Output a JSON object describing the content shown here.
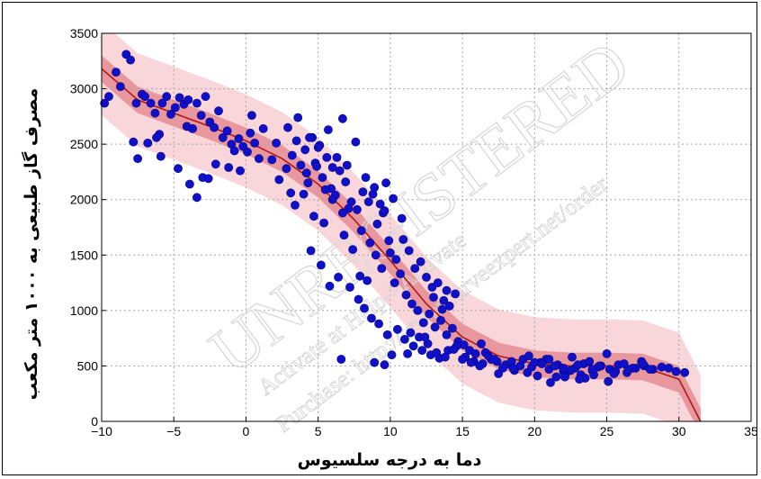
{
  "chart_data": {
    "type": "scatter",
    "xlabel": "دما به درجه سلسیوس",
    "ylabel": "مصرف گاز طبیعی به ۱۰۰۰ متر مکعب",
    "xlim": [
      -10,
      35
    ],
    "ylim": [
      0,
      3500
    ],
    "x_ticks": [
      "−10",
      "−5",
      "0",
      "5",
      "10",
      "15",
      "20",
      "25",
      "30",
      "35"
    ],
    "y_ticks": [
      "0",
      "500",
      "1000",
      "1500",
      "2000",
      "2500",
      "3000",
      "3500"
    ],
    "grid": true,
    "colors": {
      "points": "#1010c8",
      "fit_line": "#b01818",
      "confidence_band": "#e3828a",
      "prediction_band": "#f6c8cc"
    },
    "series": [
      {
        "kind": "points",
        "x": [
          -9.8,
          -9.5,
          -9.0,
          -8.7,
          -8.3,
          -8.0,
          -7.6,
          -7.2,
          -7.0,
          -6.6,
          -6.3,
          -6.0,
          -5.8,
          -5.5,
          -5.2,
          -4.9,
          -4.6,
          -4.3,
          -4.0,
          -3.7,
          -3.4,
          -3.1,
          -2.8,
          -2.5,
          -2.2,
          -1.9,
          -1.6,
          -1.3,
          -1.0,
          -0.8,
          -0.5,
          -0.2,
          0.1,
          0.3,
          0.6,
          0.9,
          -7.5,
          -6.8,
          -5.9,
          -4.7,
          -3.9,
          -3.0,
          -2.1,
          -1.2,
          -0.4,
          -7.8,
          -6.2,
          -4.1,
          -3.4,
          -2.6,
          0.4,
          1.2,
          1.8,
          2.3,
          2.8,
          3.2,
          3.5,
          3.8,
          4.1,
          4.3,
          4.6,
          4.8,
          5.1,
          5.3,
          5.6,
          5.9,
          6.2,
          6.5,
          6.9,
          7.3,
          7.7,
          8.1,
          8.5,
          8.9,
          9.3,
          9.7,
          2.1,
          2.9,
          3.6,
          4.4,
          5.0,
          5.7,
          6.3,
          7.0,
          7.6,
          8.3,
          8.8,
          9.5,
          10.2,
          10.8,
          3.4,
          4.0,
          4.7,
          5.4,
          6.0,
          6.7,
          4.2,
          4.9,
          5.5,
          3.1,
          6.8,
          7.4,
          8.0,
          8.6,
          9.1,
          9.6,
          10.0,
          10.4,
          10.9,
          11.3,
          11.7,
          12.1,
          12.5,
          12.9,
          13.3,
          13.7,
          14.1,
          14.5,
          7.9,
          8.4,
          9.0,
          9.4,
          9.9,
          10.3,
          10.7,
          11.1,
          11.5,
          11.9,
          12.3,
          12.7,
          13.1,
          13.5,
          13.9,
          14.3,
          14.7,
          15.1,
          15.5,
          15.9,
          16.3,
          7.2,
          7.8,
          8.2,
          8.7,
          9.2,
          9.8,
          10.5,
          11.0,
          11.6,
          12.2,
          12.8,
          13.4,
          14.0,
          14.6,
          15.2,
          15.8,
          16.4,
          17.0,
          4.5,
          5.2,
          5.8,
          6.4,
          11.4,
          12.0,
          12.6,
          13.2,
          13.8,
          14.4,
          15.0,
          15.6,
          16.2,
          16.8,
          17.4,
          18.0,
          18.6,
          19.2,
          19.8,
          20.4,
          21.0,
          21.6,
          22.2,
          22.8,
          23.4,
          24.0,
          24.6,
          25.2,
          25.8,
          26.4,
          27.0,
          27.6,
          28.2,
          28.8,
          29.3,
          29.8,
          30.4,
          16.6,
          17.2,
          17.8,
          18.4,
          19.0,
          19.6,
          20.2,
          20.8,
          21.4,
          22.0,
          22.6,
          23.2,
          23.8,
          24.4,
          25.0,
          25.6,
          26.2,
          26.8,
          27.4,
          28.0,
          17.5,
          18.5,
          19.5,
          20.5,
          21.5,
          22.5,
          23.5,
          24.5,
          25.5,
          26.5,
          27.5,
          21.1,
          22.1,
          23.1,
          24.1,
          25.1,
          20.0,
          21.0,
          22.0,
          23.0,
          24.0,
          13.0,
          13.6,
          12.4,
          9.6,
          10.1,
          8.9,
          7.1,
          6.6,
          6.0,
          6.7,
          13.9,
          11.2
        ],
        "y": [
          2870,
          2930,
          3150,
          3020,
          3310,
          3260,
          2870,
          2950,
          2930,
          2870,
          2780,
          2590,
          2870,
          2930,
          2770,
          2830,
          2920,
          2860,
          2900,
          2640,
          2870,
          2760,
          2930,
          2700,
          2650,
          2800,
          2560,
          2620,
          2500,
          2440,
          2550,
          2480,
          2430,
          2600,
          2510,
          2370,
          2370,
          2510,
          2390,
          2280,
          2140,
          2200,
          2320,
          2290,
          2260,
          2520,
          2560,
          2660,
          2020,
          2190,
          2760,
          2640,
          2360,
          2180,
          2280,
          2400,
          2530,
          2310,
          2450,
          2150,
          2560,
          2330,
          2490,
          2200,
          2380,
          2100,
          2040,
          2260,
          2160,
          1980,
          1910,
          2070,
          1980,
          2110,
          1960,
          2150,
          2510,
          2650,
          2740,
          2560,
          2470,
          2630,
          2380,
          2310,
          2520,
          2200,
          2050,
          1880,
          2010,
          1830,
          1950,
          2050,
          1850,
          1790,
          2000,
          1880,
          2240,
          2300,
          2090,
          2060,
          1680,
          1550,
          1720,
          1610,
          1780,
          1900,
          1520,
          1460,
          1640,
          1540,
          1380,
          1440,
          1300,
          1210,
          1250,
          1090,
          1040,
          1150,
          1310,
          1270,
          1500,
          1380,
          1630,
          1250,
          1330,
          1140,
          1060,
          1000,
          890,
          970,
          850,
          910,
          780,
          840,
          720,
          690,
          640,
          610,
          700,
          1210,
          1100,
          1020,
          930,
          880,
          780,
          830,
          740,
          680,
          640,
          600,
          570,
          640,
          680,
          580,
          540,
          520,
          560,
          1540,
          1410,
          1220,
          1300,
          800,
          760,
          700,
          620,
          580,
          650,
          560,
          530,
          500,
          590,
          540,
          510,
          460,
          560,
          490,
          530,
          470,
          510,
          440,
          480,
          520,
          460,
          500,
          470,
          510,
          440,
          480,
          500,
          470,
          490,
          480,
          450,
          440,
          620,
          560,
          480,
          540,
          500,
          590,
          410,
          560,
          500,
          450,
          580,
          420,
          540,
          490,
          610,
          450,
          520,
          480,
          540,
          470,
          430,
          480,
          440,
          520,
          400,
          460,
          390,
          500,
          430,
          470,
          520,
          350,
          400,
          380,
          420,
          360,
          530,
          560,
          480,
          510,
          470,
          1120,
          1010,
          760,
          510,
          600,
          530,
          1920,
          560,
          2290,
          2730,
          1180,
          610
        ]
      },
      {
        "kind": "fit_line",
        "x": [
          -10,
          -7.5,
          -5,
          -2.5,
          0,
          2.5,
          5,
          7.5,
          10,
          12.5,
          15,
          17.5,
          20,
          22.5,
          25,
          27.5,
          30,
          31.5
        ],
        "y": [
          3180,
          2900,
          2780,
          2660,
          2530,
          2370,
          2140,
          1820,
          1450,
          1060,
          760,
          590,
          520,
          500,
          500,
          490,
          380,
          0
        ]
      }
    ]
  },
  "watermark": {
    "main": "UNREGISTERED",
    "line1": "Activate at Help->Activate",
    "line2": "Purchase: http://www.curveexpert.net/order"
  }
}
